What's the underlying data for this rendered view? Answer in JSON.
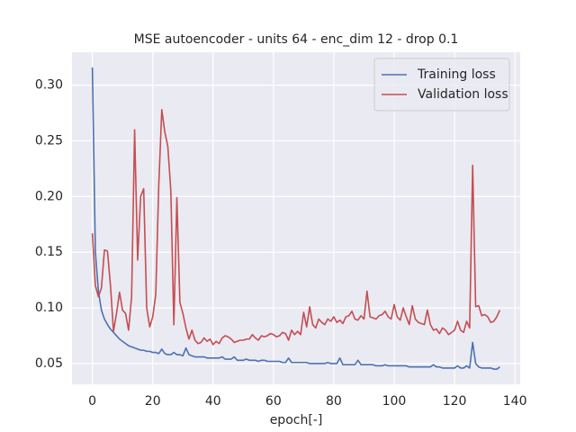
{
  "chart_data": {
    "type": "line",
    "title": "MSE autoencoder - units 64 - enc_dim 12 - drop 0.1",
    "xlabel": "epoch[-]",
    "x": [
      0,
      1,
      2,
      3,
      4,
      5,
      6,
      7,
      8,
      9,
      10,
      11,
      12,
      13,
      14,
      15,
      16,
      17,
      18,
      19,
      20,
      21,
      22,
      23,
      24,
      25,
      26,
      27,
      28,
      29,
      30,
      31,
      32,
      33,
      34,
      35,
      36,
      37,
      38,
      39,
      40,
      41,
      42,
      43,
      44,
      45,
      46,
      47,
      48,
      49,
      50,
      51,
      52,
      53,
      54,
      55,
      56,
      57,
      58,
      59,
      60,
      61,
      62,
      63,
      64,
      65,
      66,
      67,
      68,
      69,
      70,
      71,
      72,
      73,
      74,
      75,
      76,
      77,
      78,
      79,
      80,
      81,
      82,
      83,
      84,
      85,
      86,
      87,
      88,
      89,
      90,
      91,
      92,
      93,
      94,
      95,
      96,
      97,
      98,
      99,
      100,
      101,
      102,
      103,
      104,
      105,
      106,
      107,
      108,
      109,
      110,
      111,
      112,
      113,
      114,
      115,
      116,
      117,
      118,
      119,
      120,
      121,
      122,
      123,
      124,
      125,
      126,
      127,
      128,
      129,
      130,
      131,
      132,
      133,
      134,
      135
    ],
    "series": [
      {
        "name": "Training loss",
        "color": "#4c72b0",
        "values": [
          0.316,
          0.15,
          0.115,
          0.098,
          0.09,
          0.085,
          0.081,
          0.078,
          0.075,
          0.072,
          0.07,
          0.068,
          0.066,
          0.065,
          0.064,
          0.063,
          0.062,
          0.062,
          0.061,
          0.061,
          0.06,
          0.06,
          0.059,
          0.063,
          0.059,
          0.058,
          0.058,
          0.06,
          0.058,
          0.058,
          0.057,
          0.064,
          0.058,
          0.057,
          0.056,
          0.056,
          0.056,
          0.056,
          0.055,
          0.055,
          0.055,
          0.055,
          0.055,
          0.056,
          0.054,
          0.054,
          0.054,
          0.056,
          0.053,
          0.053,
          0.053,
          0.054,
          0.053,
          0.053,
          0.053,
          0.052,
          0.053,
          0.053,
          0.052,
          0.052,
          0.052,
          0.052,
          0.052,
          0.051,
          0.051,
          0.055,
          0.051,
          0.051,
          0.051,
          0.051,
          0.051,
          0.051,
          0.05,
          0.05,
          0.05,
          0.05,
          0.05,
          0.05,
          0.051,
          0.05,
          0.05,
          0.05,
          0.055,
          0.049,
          0.049,
          0.049,
          0.049,
          0.049,
          0.053,
          0.049,
          0.049,
          0.049,
          0.049,
          0.049,
          0.048,
          0.048,
          0.048,
          0.049,
          0.048,
          0.048,
          0.048,
          0.048,
          0.048,
          0.048,
          0.048,
          0.047,
          0.047,
          0.047,
          0.047,
          0.047,
          0.047,
          0.047,
          0.047,
          0.049,
          0.047,
          0.047,
          0.046,
          0.046,
          0.046,
          0.046,
          0.046,
          0.048,
          0.046,
          0.046,
          0.048,
          0.046,
          0.069,
          0.05,
          0.047,
          0.046,
          0.046,
          0.046,
          0.046,
          0.045,
          0.045,
          0.047
        ]
      },
      {
        "name": "Validation loss",
        "color": "#c44e52",
        "values": [
          0.167,
          0.12,
          0.11,
          0.118,
          0.152,
          0.151,
          0.12,
          0.079,
          0.095,
          0.114,
          0.098,
          0.095,
          0.08,
          0.11,
          0.26,
          0.143,
          0.2,
          0.207,
          0.1,
          0.083,
          0.092,
          0.112,
          0.21,
          0.278,
          0.258,
          0.245,
          0.205,
          0.085,
          0.199,
          0.105,
          0.095,
          0.082,
          0.072,
          0.08,
          0.071,
          0.068,
          0.069,
          0.073,
          0.07,
          0.072,
          0.067,
          0.07,
          0.068,
          0.073,
          0.075,
          0.074,
          0.072,
          0.069,
          0.07,
          0.071,
          0.071,
          0.072,
          0.072,
          0.076,
          0.073,
          0.071,
          0.075,
          0.074,
          0.075,
          0.077,
          0.076,
          0.074,
          0.075,
          0.078,
          0.077,
          0.071,
          0.08,
          0.076,
          0.079,
          0.076,
          0.096,
          0.083,
          0.101,
          0.085,
          0.082,
          0.09,
          0.087,
          0.085,
          0.09,
          0.088,
          0.092,
          0.087,
          0.089,
          0.086,
          0.092,
          0.093,
          0.097,
          0.09,
          0.089,
          0.093,
          0.09,
          0.115,
          0.092,
          0.091,
          0.09,
          0.093,
          0.094,
          0.097,
          0.092,
          0.09,
          0.103,
          0.092,
          0.089,
          0.1,
          0.092,
          0.085,
          0.102,
          0.09,
          0.087,
          0.086,
          0.085,
          0.098,
          0.085,
          0.08,
          0.081,
          0.077,
          0.082,
          0.08,
          0.076,
          0.078,
          0.08,
          0.088,
          0.08,
          0.078,
          0.088,
          0.082,
          0.228,
          0.101,
          0.102,
          0.093,
          0.094,
          0.092,
          0.087,
          0.088,
          0.092,
          0.098
        ]
      }
    ],
    "xlim": [
      -6.75,
      141.75
    ],
    "xticks": [
      0,
      20,
      40,
      60,
      80,
      100,
      120,
      140
    ],
    "ylim": [
      0.0314,
      0.3296
    ],
    "yticks": [
      0.05,
      {
        "value": 0.1,
        "label": "0.10"
      },
      0.15,
      {
        "value": 0.2,
        "label": "0.20"
      },
      0.25,
      {
        "value": 0.3,
        "label": "0.30"
      }
    ],
    "grid": true,
    "legend": "upper right"
  }
}
